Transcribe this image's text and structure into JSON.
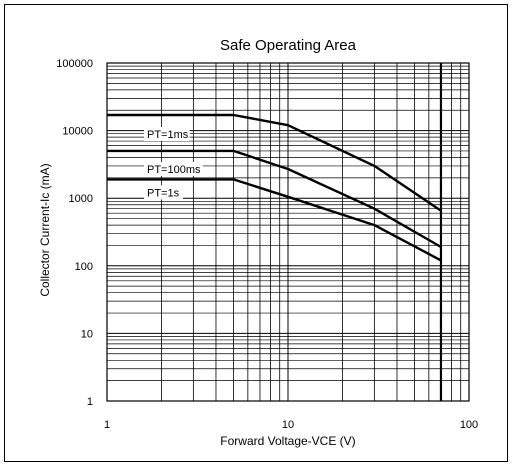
{
  "chart_data": {
    "type": "line",
    "title": "Safe Operating Area",
    "xlabel": "Forward Voltage-VCE (V)",
    "ylabel": "Collector Current-Ic (mA)",
    "xscale": "log",
    "yscale": "log",
    "xlim": [
      1,
      100
    ],
    "ylim": [
      1,
      100000
    ],
    "grid": true,
    "x_ticks": [
      "1",
      "10",
      "100"
    ],
    "y_ticks": [
      "1",
      "10",
      "100",
      "1000",
      "10000",
      "100000"
    ],
    "series": [
      {
        "name": "PT=1ms",
        "points": [
          [
            1,
            17000
          ],
          [
            5,
            17000
          ],
          [
            10,
            12000
          ],
          [
            30,
            3000
          ],
          [
            70,
            650
          ]
        ]
      },
      {
        "name": "PT=100ms",
        "points": [
          [
            1,
            5000
          ],
          [
            5,
            5000
          ],
          [
            10,
            2700
          ],
          [
            30,
            700
          ],
          [
            70,
            190
          ]
        ]
      },
      {
        "name": "PT=1s",
        "points": [
          [
            1,
            1900
          ],
          [
            5,
            1900
          ],
          [
            10,
            1050
          ],
          [
            30,
            400
          ],
          [
            70,
            120
          ]
        ]
      }
    ],
    "vertical_limit": {
      "x": 70,
      "label": ""
    }
  }
}
